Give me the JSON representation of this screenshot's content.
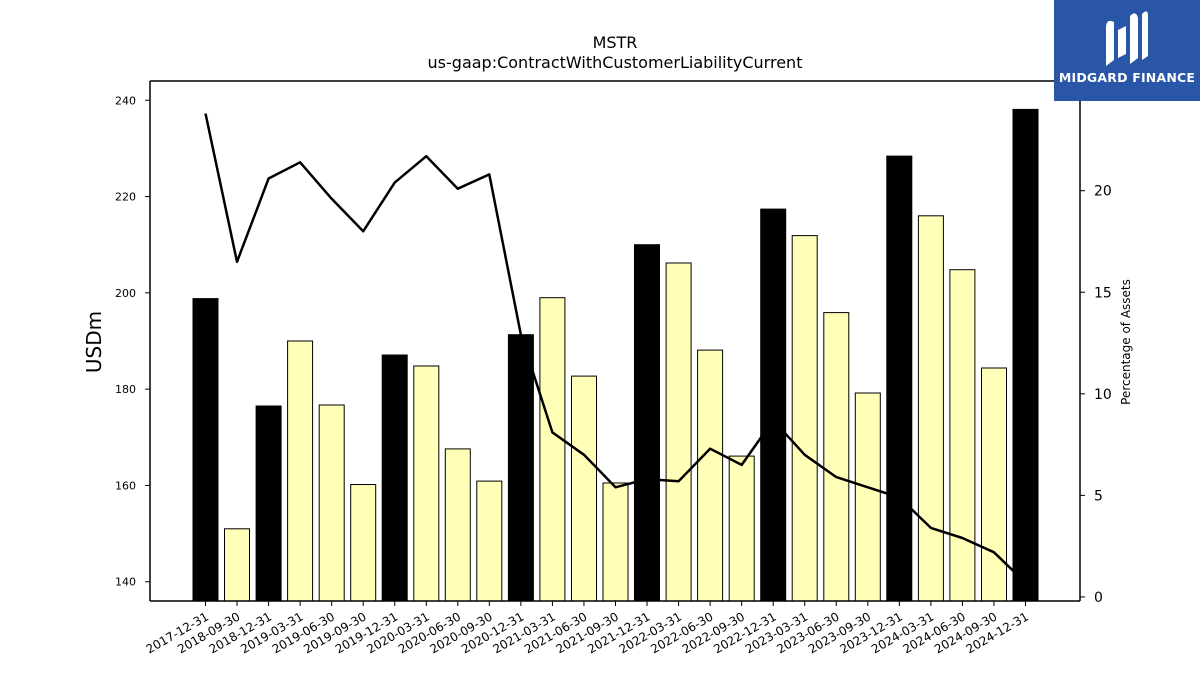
{
  "chart_data": {
    "type": "bar",
    "title": "MSTR",
    "subtitle": "us-gaap:ContractWithCustomerLiabilityCurrent",
    "ylabel": "USDm",
    "y2label": "Percentage of Assets",
    "ylim": [
      136,
      244
    ],
    "y2lim": [
      -0.2,
      25.4
    ],
    "yticks": [
      140,
      160,
      180,
      200,
      220,
      240
    ],
    "y2ticks": [
      0,
      5,
      10,
      15,
      20
    ],
    "grid": false,
    "categories": [
      "2017-12-31",
      "2018-09-30",
      "2018-12-31",
      "2019-03-31",
      "2019-06-30",
      "2019-09-30",
      "2019-12-31",
      "2020-03-31",
      "2020-06-30",
      "2020-09-30",
      "2020-12-31",
      "2021-03-31",
      "2021-06-30",
      "2021-09-30",
      "2021-12-31",
      "2022-03-31",
      "2022-06-30",
      "2022-09-30",
      "2022-12-31",
      "2023-03-31",
      "2023-06-30",
      "2023-09-30",
      "2023-12-31",
      "2024-03-31",
      "2024-06-30",
      "2024-09-30",
      "2024-12-31"
    ],
    "series": [
      {
        "type": "bar",
        "values": [
          198.8,
          151.0,
          176.5,
          190.0,
          176.7,
          160.2,
          187.1,
          184.8,
          167.6,
          160.9,
          191.3,
          199.0,
          182.7,
          160.5,
          210.0,
          206.2,
          188.1,
          166.1,
          217.4,
          211.9,
          195.9,
          179.2,
          228.4,
          216.0,
          204.8,
          184.4,
          238.1
        ],
        "year_end": [
          true,
          false,
          true,
          false,
          false,
          false,
          true,
          false,
          false,
          false,
          true,
          false,
          false,
          false,
          true,
          false,
          false,
          false,
          true,
          false,
          false,
          false,
          true,
          false,
          false,
          false,
          true
        ]
      },
      {
        "type": "line",
        "axis": "secondary",
        "values": [
          23.8,
          16.5,
          20.6,
          21.4,
          19.6,
          18.0,
          20.4,
          21.7,
          20.1,
          20.8,
          12.9,
          8.1,
          7.0,
          5.4,
          5.8,
          5.7,
          7.3,
          6.5,
          8.7,
          7.0,
          5.9,
          5.4,
          4.9,
          3.4,
          2.9,
          2.2,
          0.7
        ]
      }
    ],
    "colors": {
      "year_end_bar": "#000000",
      "quarter_bar": "#ffffb8",
      "line": "#000000"
    }
  },
  "logo": {
    "text": "MIDGARD FINANCE",
    "background": "#2a56a8"
  }
}
